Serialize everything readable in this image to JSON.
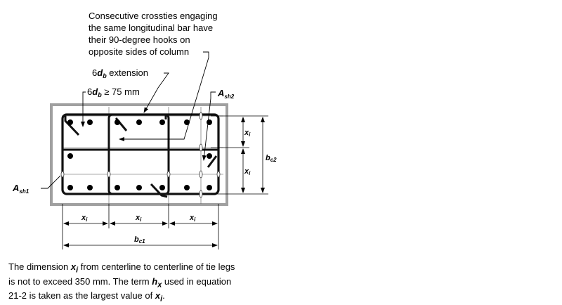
{
  "annotations": {
    "crossties_note": [
      "Consecutive crossties engaging",
      "the same longitudinal bar have",
      "their 90-degree hooks on",
      "opposite sides of column"
    ],
    "extension_prefix": "6",
    "extension_var": "d",
    "extension_sub": "b",
    "extension_text": " extension",
    "minlen_prefix": "6",
    "minlen_var": "d",
    "minlen_sub": "b",
    "minlen_text": " ≥ 75 mm",
    "ash2_var": "A",
    "ash2_sub": "sh2",
    "ash1_var": "A",
    "ash1_sub": "sh1"
  },
  "dimensions": {
    "x_var": "x",
    "x_sub": "i",
    "bc1_var": "b",
    "bc1_sub": "c1",
    "bc2_var": "b",
    "bc2_sub": "c2"
  },
  "caption": {
    "t1": "The dimension ",
    "v1": "x",
    "s1": "i",
    "t2": " from centerline to centerline of tie legs",
    "t3": "is not to exceed 350 mm.   The term ",
    "v2": "h",
    "s2": "x",
    "t4": " used in equation",
    "t5": "21-2 is taken as the largest value of ",
    "v3": "x",
    "s3": "i",
    "t6": "."
  }
}
